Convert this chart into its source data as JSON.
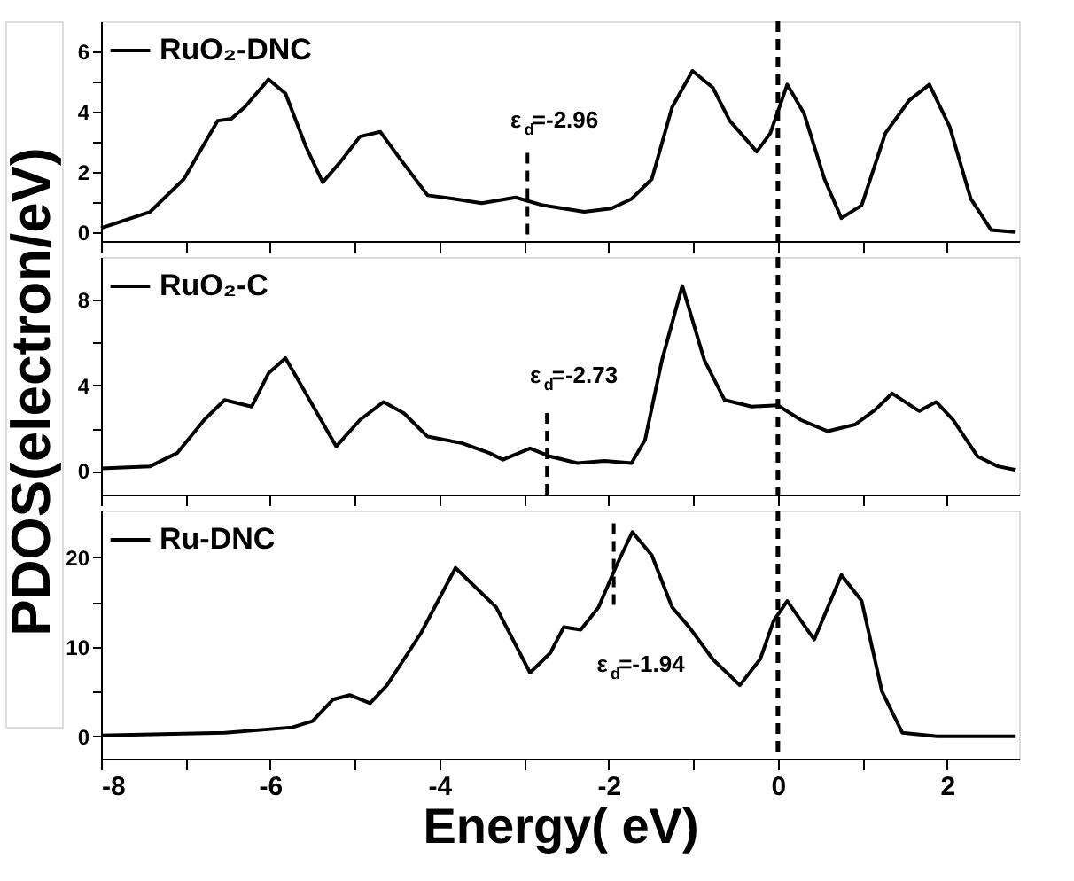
{
  "chart_data": [
    {
      "type": "line",
      "series": [
        {
          "name": "RuO₂-DNC",
          "color": "#000000",
          "x": [
            -8,
            -7.42,
            -7.02,
            -6.62,
            -6.46,
            -6.3,
            -6.02,
            -5.82,
            -5.58,
            -5.38,
            -5.18,
            -4.94,
            -4.7,
            -4.46,
            -4.14,
            -3.82,
            -3.5,
            -3.1,
            -2.78,
            -2.29,
            -1.97,
            -1.73,
            -1.49,
            -1.25,
            -1.01,
            -0.77,
            -0.57,
            -0.25,
            -0.09,
            0.11,
            0.31,
            0.55,
            0.75,
            0.99,
            1.27,
            1.55,
            1.79,
            2.03,
            2.28,
            2.52,
            2.8
          ],
          "values": [
            0.13,
            0.67,
            1.76,
            3.7,
            3.76,
            4.15,
            5.07,
            4.6,
            2.85,
            1.65,
            2.3,
            3.17,
            3.33,
            2.41,
            1.22,
            1.1,
            0.96,
            1.15,
            0.89,
            0.67,
            0.78,
            1.1,
            1.76,
            4.15,
            5.35,
            4.8,
            3.7,
            2.67,
            3.28,
            4.9,
            3.93,
            1.76,
            0.46,
            0.89,
            3.28,
            4.37,
            4.9,
            3.5,
            1.1,
            0.07,
            0
          ]
        }
      ],
      "xlim": [
        -8,
        2.85
      ],
      "xticks": [
        -8,
        {
          "value": -7,
          "label": null
        },
        -6,
        {
          "value": -5,
          "label": null
        },
        -4,
        {
          "value": -3,
          "label": null
        },
        -2,
        {
          "value": -1,
          "label": null
        },
        0,
        {
          "value": 1,
          "label": null
        },
        2
      ],
      "ylim": [
        -0.3,
        7
      ],
      "yticks": [
        0,
        {
          "value": 1,
          "label": null
        },
        2,
        {
          "value": 3,
          "label": null
        },
        4,
        {
          "value": 5,
          "label": null
        },
        6
      ],
      "ref_lines": [
        {
          "axis": "x",
          "value": 0,
          "line_style": "dashed",
          "color": "#000000"
        },
        {
          "axis": "x",
          "value": -2.96,
          "label": "ε$_{d}$=-2.96",
          "line_style": "dashed",
          "color": "#000000"
        }
      ],
      "legend": "top left",
      "tick_labels": "y",
      "grid": false,
      "marker": "none",
      "line_style": "solid"
    },
    {
      "type": "line",
      "ylabel": "PDOS(electron/eV)",
      "series": [
        {
          "name": "RuO₂-C",
          "color": "#000000",
          "x": [
            -8,
            -7.42,
            -7.1,
            -6.78,
            -6.54,
            -6.22,
            -6.02,
            -5.82,
            -5.58,
            -5.22,
            -4.94,
            -4.66,
            -4.42,
            -4.14,
            -3.73,
            -3.41,
            -3.25,
            -2.93,
            -2.69,
            -2.37,
            -2.05,
            -1.73,
            -1.57,
            -1.37,
            -1.13,
            -0.87,
            -0.63,
            -0.31,
            0.0,
            0.27,
            0.59,
            0.91,
            1.15,
            1.35,
            1.67,
            1.87,
            2.07,
            2.36,
            2.6,
            2.8
          ],
          "values": [
            0.12,
            0.22,
            0.84,
            2.39,
            3.32,
            3.01,
            4.57,
            5.28,
            3.63,
            1.15,
            2.39,
            3.23,
            2.7,
            1.61,
            1.3,
            0.84,
            0.53,
            1.06,
            0.68,
            0.37,
            0.47,
            0.37,
            1.46,
            5.19,
            8.65,
            5.19,
            3.32,
            3.01,
            3.07,
            2.39,
            1.86,
            2.17,
            2.86,
            3.63,
            2.8,
            3.23,
            2.39,
            0.68,
            0.22,
            0.06
          ]
        }
      ],
      "xlim": [
        -8,
        2.85
      ],
      "xticks": [
        -8,
        {
          "value": -7,
          "label": null
        },
        -6,
        {
          "value": -5,
          "label": null
        },
        -4,
        {
          "value": -3,
          "label": null
        },
        -2,
        {
          "value": -1,
          "label": null
        },
        0,
        {
          "value": 1,
          "label": null
        },
        2
      ],
      "ylim": [
        -1.1,
        10
      ],
      "yticks": [
        0,
        {
          "value": 2,
          "label": null
        },
        4,
        {
          "value": 6,
          "label": null
        },
        8
      ],
      "ref_lines": [
        {
          "axis": "x",
          "value": 0,
          "line_style": "dashed",
          "color": "#000000"
        },
        {
          "axis": "x",
          "value": -2.73,
          "label": "ε$_{d}$=-2.73",
          "line_style": "dashed",
          "color": "#000000"
        }
      ],
      "legend": "top left",
      "tick_labels": "y",
      "grid": false,
      "marker": "none",
      "line_style": "solid"
    },
    {
      "type": "line",
      "xlabel": "Energy( eV)",
      "series": [
        {
          "name": "Ru-DNC",
          "color": "#000000",
          "x": [
            -8,
            -6.54,
            -5.74,
            -5.5,
            -5.26,
            -5.06,
            -4.82,
            -4.62,
            -4.22,
            -3.81,
            -3.33,
            -2.93,
            -2.69,
            -2.53,
            -2.33,
            -2.12,
            -1.92,
            -1.72,
            -1.49,
            -1.25,
            -1.05,
            -0.77,
            -0.45,
            -0.21,
            -0.05,
            0.11,
            0.43,
            0.75,
            0.99,
            1.23,
            1.47,
            1.88,
            2.8
          ],
          "values": [
            0.1,
            0.4,
            1.0,
            1.7,
            4.1,
            4.6,
            3.7,
            5.7,
            11.5,
            18.8,
            14.4,
            7.1,
            9.3,
            12.2,
            11.9,
            14.4,
            18.8,
            22.8,
            20.2,
            14.4,
            12.2,
            8.6,
            5.7,
            8.6,
            12.9,
            15.1,
            10.8,
            18.0,
            15.1,
            5.0,
            0.4,
            0,
            0
          ]
        }
      ],
      "xlim": [
        -8,
        2.85
      ],
      "xticks": [
        -8,
        {
          "value": -7,
          "label": null
        },
        -6,
        {
          "value": -5,
          "label": null
        },
        -4,
        {
          "value": -3,
          "label": null
        },
        -2,
        {
          "value": -1,
          "label": null
        },
        0,
        {
          "value": 1,
          "label": null
        },
        2
      ],
      "ylim": [
        -2.5,
        25.2
      ],
      "yticks": [
        0,
        {
          "value": 5,
          "label": null
        },
        10,
        {
          "value": 15,
          "label": null
        },
        20
      ],
      "ref_lines": [
        {
          "axis": "x",
          "value": 0,
          "line_style": "dashed",
          "color": "#000000"
        },
        {
          "axis": "x",
          "value": -1.94,
          "label": "ε$_{d}$=-1.94",
          "line_style": "dashed",
          "color": "#000000"
        }
      ],
      "legend": "top left",
      "grid": false,
      "marker": "none",
      "line_style": "solid"
    }
  ]
}
